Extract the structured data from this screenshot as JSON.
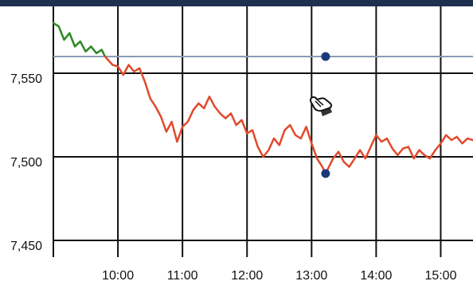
{
  "chart_data": {
    "type": "line",
    "title": "",
    "xlabel": "",
    "ylabel": "",
    "x_ticks": [
      "10:00",
      "11:00",
      "12:00",
      "13:00",
      "14:00",
      "15:00"
    ],
    "y_ticks": [
      "7,450",
      "7,500",
      "7,550"
    ],
    "xlim": [
      "09:00",
      "15:30"
    ],
    "ylim": [
      7440,
      7590
    ],
    "grid": true,
    "reference_line": {
      "value": 7560,
      "color": "#8a9bb5"
    },
    "markers": [
      {
        "x": "13:13",
        "y": 7560,
        "color": "#1b3a7a"
      },
      {
        "x": "13:13",
        "y": 7490,
        "color": "#1b3a7a"
      }
    ],
    "series": [
      {
        "color": "#2b8a1f",
        "points": [
          [
            "09:00",
            7580
          ],
          [
            "09:05",
            7578
          ],
          [
            "09:10",
            7570
          ],
          [
            "09:15",
            7574
          ],
          [
            "09:20",
            7566
          ],
          [
            "09:25",
            7569
          ],
          [
            "09:30",
            7563
          ],
          [
            "09:35",
            7566
          ],
          [
            "09:40",
            7562
          ],
          [
            "09:45",
            7564
          ],
          [
            "09:48",
            7560
          ]
        ]
      },
      {
        "color": "#e04a2c",
        "points": [
          [
            "09:48",
            7560
          ],
          [
            "09:55",
            7555
          ],
          [
            "10:00",
            7554
          ],
          [
            "10:05",
            7549
          ],
          [
            "10:10",
            7555
          ],
          [
            "10:15",
            7551
          ],
          [
            "10:20",
            7553
          ],
          [
            "10:25",
            7545
          ],
          [
            "10:30",
            7535
          ],
          [
            "10:35",
            7530
          ],
          [
            "10:40",
            7524
          ],
          [
            "10:45",
            7515
          ],
          [
            "10:50",
            7521
          ],
          [
            "10:55",
            7509
          ],
          [
            "11:00",
            7518
          ],
          [
            "11:05",
            7521
          ],
          [
            "11:10",
            7528
          ],
          [
            "11:15",
            7532
          ],
          [
            "11:20",
            7529
          ],
          [
            "11:25",
            7536
          ],
          [
            "11:30",
            7530
          ],
          [
            "11:35",
            7526
          ],
          [
            "11:40",
            7523
          ],
          [
            "11:45",
            7526
          ],
          [
            "11:50",
            7519
          ],
          [
            "11:55",
            7522
          ],
          [
            "12:00",
            7514
          ],
          [
            "12:05",
            7516
          ],
          [
            "12:10",
            7506
          ],
          [
            "12:15",
            7500
          ],
          [
            "12:20",
            7504
          ],
          [
            "12:25",
            7511
          ],
          [
            "12:30",
            7507
          ],
          [
            "12:35",
            7516
          ],
          [
            "12:40",
            7519
          ],
          [
            "12:45",
            7513
          ],
          [
            "12:50",
            7511
          ],
          [
            "12:55",
            7518
          ],
          [
            "13:00",
            7508
          ],
          [
            "13:05",
            7499
          ],
          [
            "13:10",
            7494
          ],
          [
            "13:13",
            7490
          ],
          [
            "13:20",
            7499
          ],
          [
            "13:25",
            7503
          ],
          [
            "13:30",
            7497
          ],
          [
            "13:35",
            7494
          ],
          [
            "13:40",
            7499
          ],
          [
            "13:45",
            7504
          ],
          [
            "13:50",
            7499
          ],
          [
            "13:55",
            7506
          ],
          [
            "14:00",
            7513
          ],
          [
            "14:05",
            7509
          ],
          [
            "14:10",
            7511
          ],
          [
            "14:15",
            7505
          ],
          [
            "14:20",
            7501
          ],
          [
            "14:25",
            7505
          ],
          [
            "14:30",
            7506
          ],
          [
            "14:35",
            7499
          ],
          [
            "14:40",
            7504
          ],
          [
            "14:45",
            7501
          ],
          [
            "14:50",
            7499
          ],
          [
            "14:55",
            7504
          ],
          [
            "15:00",
            7508
          ],
          [
            "15:05",
            7513
          ],
          [
            "15:10",
            7510
          ],
          [
            "15:15",
            7512
          ],
          [
            "15:20",
            7508
          ],
          [
            "15:25",
            7511
          ],
          [
            "15:30",
            7510
          ]
        ]
      }
    ]
  }
}
